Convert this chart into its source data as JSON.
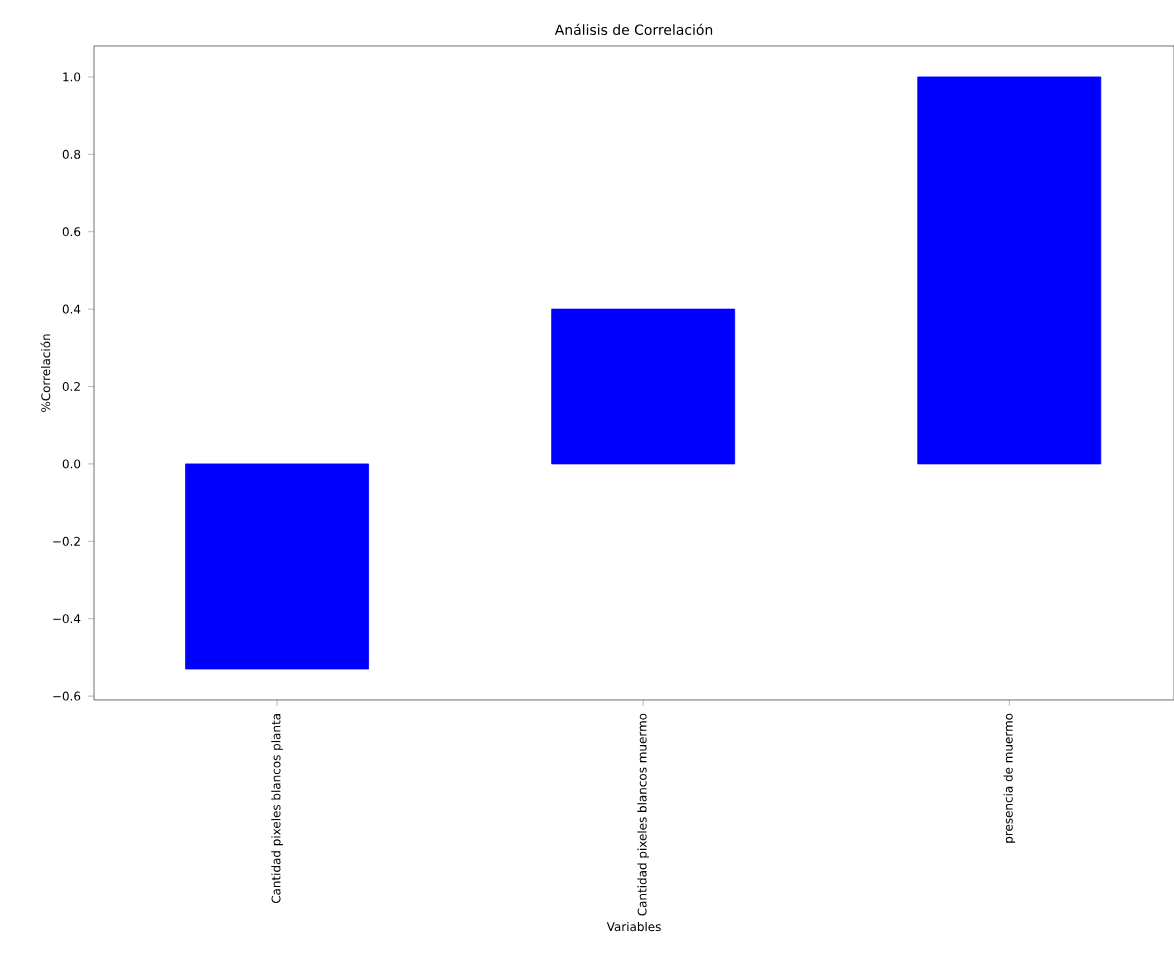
{
  "chart_data": {
    "type": "bar",
    "title": "Análisis de Correlación",
    "xlabel": "Variables",
    "ylabel": "%Correlación",
    "categories": [
      "Cantidad pixeles blancos planta",
      "Cantidad pixeles blancos muermo",
      "presencia de muermo"
    ],
    "values": [
      -0.53,
      0.4,
      1.0
    ],
    "color": "#0000ff",
    "ylim": [
      -0.61,
      1.08
    ],
    "yticks": [
      {
        "value": -0.6,
        "label": "−0.6"
      },
      {
        "value": -0.4,
        "label": "−0.4"
      },
      {
        "value": -0.2,
        "label": "−0.2"
      },
      {
        "value": 0,
        "label": "0.0"
      },
      0.2,
      0.4,
      0.6,
      0.8,
      {
        "value": 1,
        "label": "1.0"
      }
    ]
  }
}
